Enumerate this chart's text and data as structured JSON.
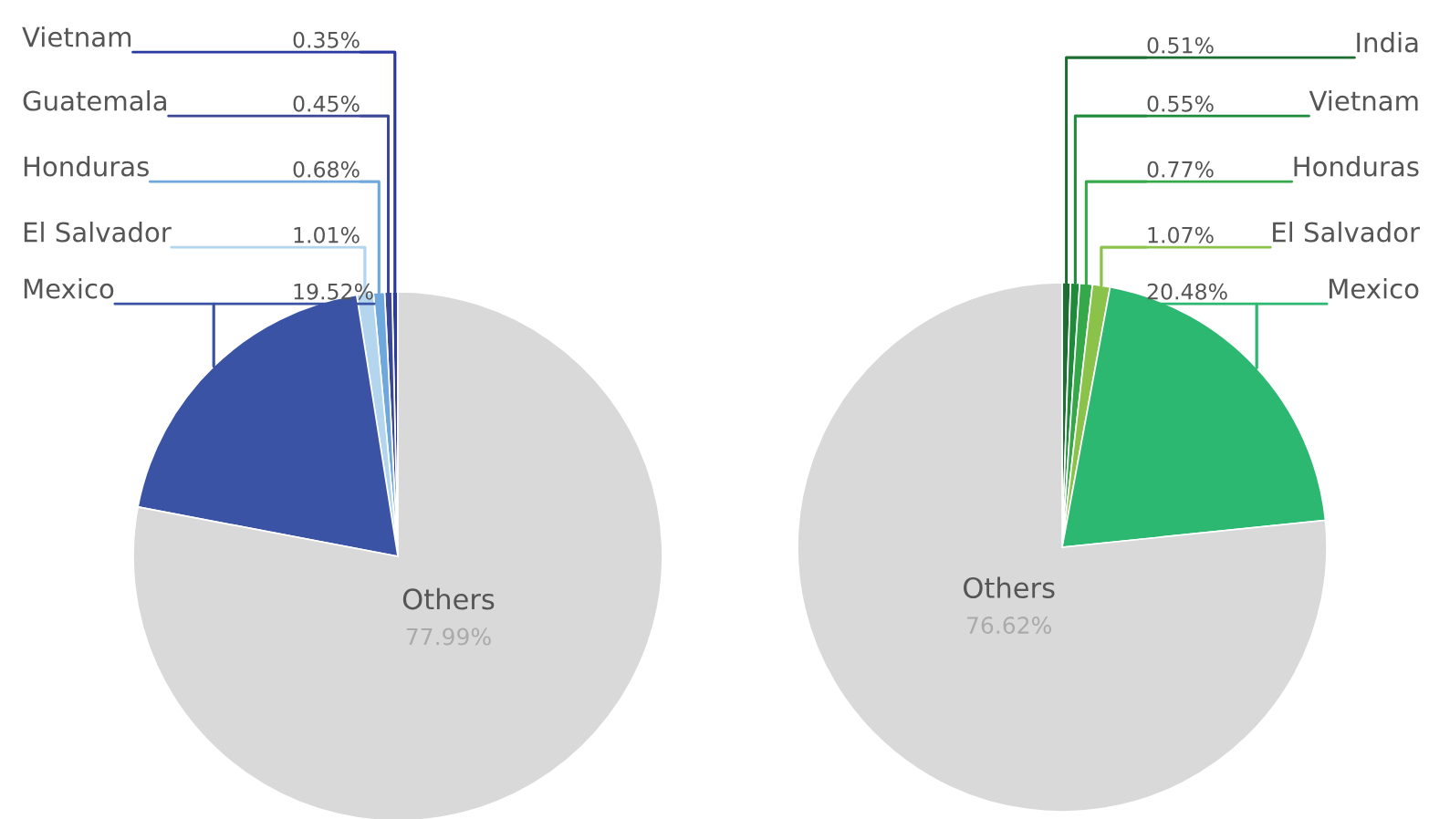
{
  "chart_data": [
    {
      "type": "pie",
      "categories": [
        "Vietnam",
        "Guatemala",
        "Honduras",
        "El Salvador",
        "Mexico",
        "Others"
      ],
      "values": [
        0.35,
        0.45,
        0.68,
        1.01,
        19.52,
        77.99
      ],
      "colors": [
        "#2b3aa0",
        "#3a4796",
        "#6fa8dc",
        "#b3d5ee",
        "#3a53a4",
        "#d9d9d9"
      ],
      "value_labels": [
        "0.35%",
        "0.45%",
        "0.68%",
        "1.01%",
        "19.52%",
        "77.99%"
      ]
    },
    {
      "type": "pie",
      "categories": [
        "India",
        "Vietnam",
        "Honduras",
        "El Salvador",
        "Mexico",
        "Others"
      ],
      "values": [
        0.51,
        0.55,
        0.77,
        1.07,
        20.48,
        76.62
      ],
      "colors": [
        "#1b6e30",
        "#1f8a3a",
        "#35a84a",
        "#8bc34a",
        "#2db872",
        "#d9d9d9"
      ],
      "value_labels": [
        "0.51%",
        "0.55%",
        "0.77%",
        "1.07%",
        "20.48%",
        "76.62%"
      ]
    }
  ]
}
